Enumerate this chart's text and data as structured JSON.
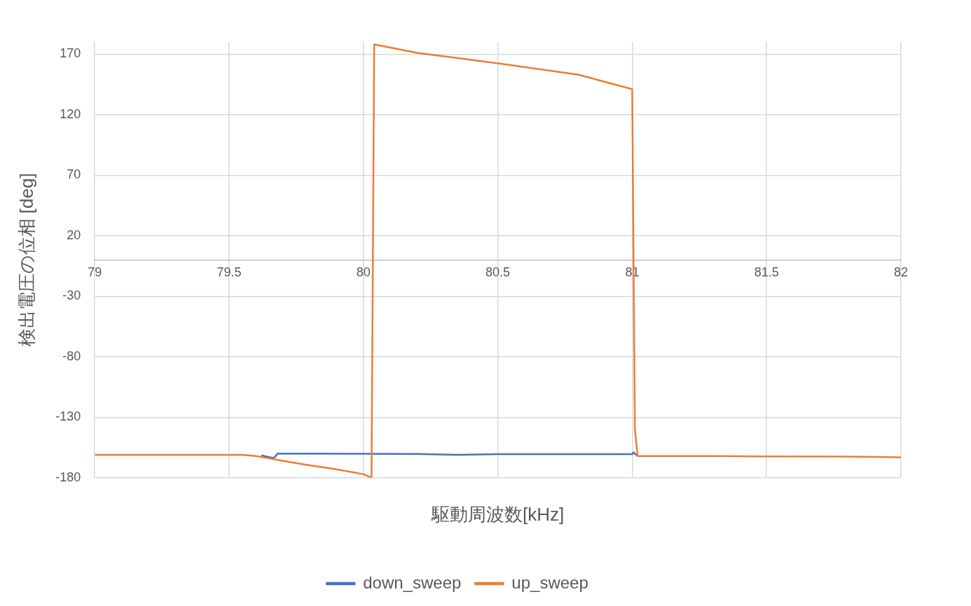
{
  "chart_data": {
    "type": "line",
    "xlabel": "駆動周波数[kHz]",
    "ylabel": "検出電圧の位相 [deg]",
    "xlim": [
      79,
      82
    ],
    "xticks": [
      79,
      79.5,
      80,
      80.5,
      81,
      81.5,
      82
    ],
    "ylim": [
      -180,
      180
    ],
    "yticks": [
      -180,
      -130,
      -80,
      -30,
      20,
      70,
      120,
      170
    ],
    "grid": true,
    "legend": "bottom",
    "marker": "none",
    "line_style": "solid",
    "series": [
      {
        "name": "down_sweep",
        "color": "#4472c4",
        "x": [
          79.62,
          79.64,
          79.66,
          79.67,
          79.68,
          79.8,
          80,
          80.2,
          80.35,
          80.5,
          80.7,
          81,
          81.005,
          81.01,
          81.02
        ],
        "values": [
          -161.5,
          -162.5,
          -163.5,
          -163,
          -160,
          -160,
          -160.2,
          -160.3,
          -161,
          -160.4,
          -160.5,
          -160.5,
          -159,
          -160,
          -162
        ]
      },
      {
        "name": "up_sweep",
        "color": "#ed7d31",
        "x": [
          79,
          79.2,
          79.4,
          79.55,
          79.6,
          79.65,
          79.7,
          79.78,
          79.9,
          80,
          80.03,
          80.04,
          80.2,
          80.5,
          80.8,
          81,
          81.01,
          81.02,
          81.2,
          81.5,
          81.8,
          82
        ],
        "values": [
          -161,
          -161,
          -161,
          -161,
          -162,
          -164,
          -166,
          -169,
          -173,
          -177,
          -180,
          178,
          171,
          162.4,
          153,
          141,
          -140,
          -162,
          -162,
          -162.3,
          -162.5,
          -163
        ]
      }
    ]
  }
}
